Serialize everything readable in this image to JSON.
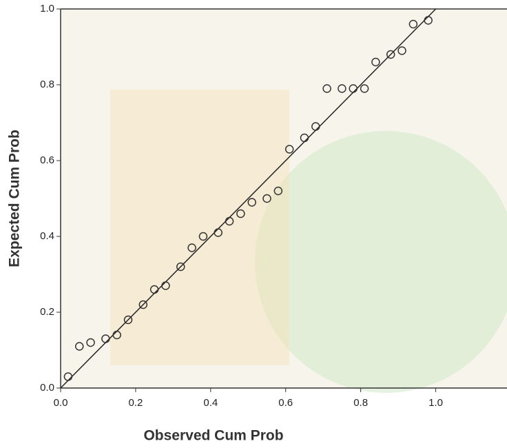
{
  "chart_data": {
    "type": "scatter",
    "x_label": "Observed Cum Prob",
    "y_label": "Expected Cum Prob",
    "x": [
      0.02,
      0.05,
      0.08,
      0.12,
      0.15,
      0.18,
      0.22,
      0.25,
      0.28,
      0.32,
      0.35,
      0.38,
      0.42,
      0.45,
      0.48,
      0.51,
      0.55,
      0.58,
      0.61,
      0.65,
      0.68,
      0.71,
      0.75,
      0.78,
      0.81,
      0.84,
      0.88,
      0.91,
      0.94,
      0.98
    ],
    "y": [
      0.03,
      0.11,
      0.12,
      0.13,
      0.14,
      0.18,
      0.22,
      0.26,
      0.27,
      0.32,
      0.37,
      0.4,
      0.41,
      0.44,
      0.46,
      0.49,
      0.5,
      0.52,
      0.63,
      0.66,
      0.69,
      0.79,
      0.79,
      0.79,
      0.79,
      0.86,
      0.88,
      0.89,
      0.96,
      0.97
    ],
    "color": "#333333",
    "xlim": [
      0,
      1.19
    ],
    "ylim": [
      0,
      1
    ],
    "xticks": [
      {
        "value": 0,
        "label": "0.0"
      },
      0.2,
      0.4,
      0.6,
      0.8,
      {
        "value": 1,
        "label": "1.0"
      }
    ],
    "yticks": [
      {
        "value": 0,
        "label": "0.0"
      },
      0.2,
      0.4,
      0.6,
      0.8,
      {
        "value": 1,
        "label": "1.0"
      }
    ]
  }
}
